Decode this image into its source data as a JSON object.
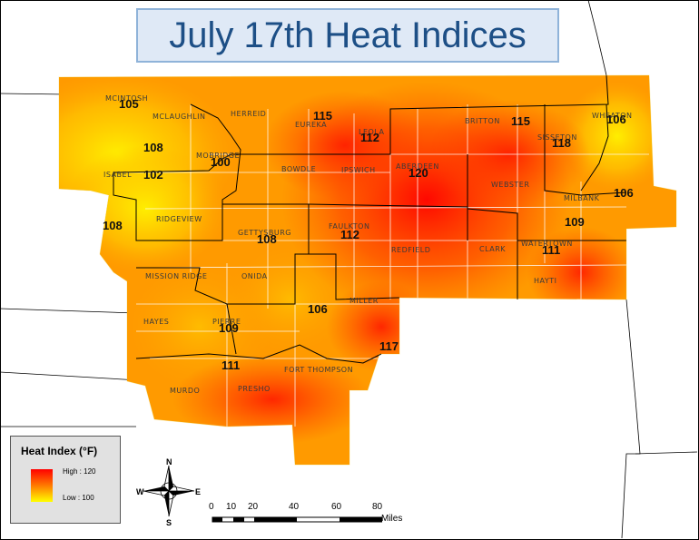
{
  "title": "July 17th Heat Indices",
  "legend": {
    "title": "Heat Index (°F)",
    "high_label": "High : 120",
    "low_label": "Low : 100",
    "high_color": "#ff0000",
    "low_color": "#ffff00"
  },
  "towns": [
    "MCINTOSH",
    "MCLAUGHLIN",
    "HERREID",
    "EUREKA",
    "LEOLA",
    "BRITTON",
    "SISSETON",
    "WHEATON",
    "MOBRIDGE",
    "ISABEL",
    "BOWDLE",
    "IPSWICH",
    "ABERDEEN",
    "WEBSTER",
    "MILBANK",
    "RIDGEVIEW",
    "GETTYSBURG",
    "FAULKTON",
    "REDFIELD",
    "CLARK",
    "WATERTOWN",
    "HAYTI",
    "MISSION RIDGE",
    "ONIDA",
    "MILLER",
    "HAYES",
    "PIERRE",
    "MURDO",
    "PRESHO",
    "FORT THOMPSON"
  ],
  "values": [
    "105",
    "108",
    "102",
    "108",
    "100",
    "115",
    "112",
    "115",
    "118",
    "106",
    "120",
    "106",
    "108",
    "112",
    "109",
    "111",
    "106",
    "109",
    "117",
    "111"
  ],
  "compass": {
    "n": "N",
    "s": "S",
    "e": "E",
    "w": "W"
  },
  "scale": {
    "ticks": [
      "0",
      "10",
      "20",
      "40",
      "60",
      "80"
    ],
    "unit": "Miles"
  }
}
